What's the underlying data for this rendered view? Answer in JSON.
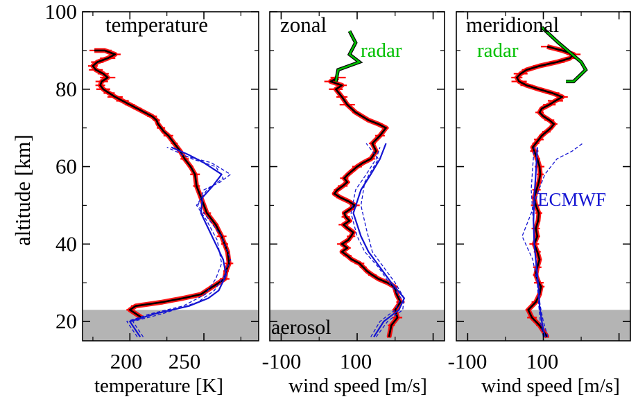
{
  "chart_data": {
    "type": "line",
    "ylabel": "altitude [km]",
    "ylim": [
      15,
      100
    ],
    "yticks": [
      "20",
      "40",
      "60",
      "80",
      "100"
    ],
    "shaded_band": {
      "label": "aerosol",
      "y_from": 15,
      "y_to": 23
    },
    "colors": {
      "lidar": "#000000",
      "error": "#ff0000",
      "radar": "#00c000",
      "ecmwf": "#1414d2",
      "band": "#b4b4b4"
    },
    "panels": [
      {
        "title": "temperature",
        "xlabel": "temperature [K]",
        "xlim": [
          168,
          287
        ],
        "xticks": [
          "200",
          "250"
        ],
        "series": [
          {
            "name": "",
            "style": "lidar",
            "x": [
              208,
              200,
              204,
              222,
              236,
              248,
              256,
              264,
              265,
              267,
              266,
              264,
              262,
              258,
              252,
              248,
              245,
              244,
              241,
              237,
              234,
              230,
              226,
              223,
              221,
              219,
              218,
              215,
              210,
              205,
              200,
              195,
              190,
              186,
              182,
              180,
              181,
              185,
              182,
              177,
              175,
              178,
              185,
              190,
              183,
              176
            ],
            "y": [
              21,
              23,
              24,
              25,
              26,
              27,
              29,
              31,
              33,
              35,
              38,
              40,
              42,
              45,
              48,
              52,
              55,
              58,
              60,
              62,
              64,
              66,
              68,
              69,
              70,
              71,
              72,
              73,
              74,
              75,
              76,
              77,
              78,
              79,
              80,
              81,
              82,
              83,
              84,
              85,
              86,
              87,
              88,
              89,
              90,
              90
            ]
          },
          {
            "name": "",
            "style": "ecmwf",
            "x": [
              207,
              200,
              217,
              240,
              253,
              260,
              265,
              263,
              258,
              253,
              248,
              249,
              256,
              262,
              250,
              240,
              228
            ],
            "y": [
              16,
              20,
              22,
              24,
              26,
              28,
              32,
              36,
              40,
              44,
              48,
              52,
              55,
              58,
              61,
              63,
              65
            ]
          },
          {
            "name": "",
            "style": "ecmwf-dashed",
            "x": [
              209,
              202,
              222,
              246,
              257,
              264,
              268,
              262,
              254,
              246,
              250,
              261,
              268,
              255,
              235
            ],
            "y": [
              16,
              20,
              22,
              25,
              28,
              32,
              36,
              42,
              46,
              50,
              54,
              56,
              58,
              61,
              63
            ]
          },
          {
            "name": "",
            "style": "ecmwf-dashed",
            "x": [
              205,
              198,
              214,
              236,
              251,
              258,
              262,
              259,
              252,
              245,
              252,
              263,
              258,
              242,
              225
            ],
            "y": [
              16,
              20,
              22,
              24,
              27,
              31,
              35,
              41,
              46,
              50,
              54,
              57,
              60,
              62,
              65
            ]
          }
        ]
      },
      {
        "title": "zonal",
        "xlabel": "wind speed [m/s]",
        "xlim": [
          -115,
          115
        ],
        "xticks": [
          "-100",
          "100"
        ],
        "series": [
          {
            "name": "",
            "style": "lidar",
            "x": [
              42,
              45,
              53,
              50,
              57,
              52,
              49,
              40,
              28,
              20,
              13,
              8,
              3,
              -7,
              -13,
              -20,
              -13,
              -20,
              -12,
              -8,
              -5,
              -12,
              -18,
              -10,
              -15,
              -17,
              -9,
              -3,
              -11,
              -22,
              -30,
              -26,
              -19,
              -13,
              -17,
              -12,
              -6,
              0,
              8,
              18,
              25,
              20,
              30,
              38,
              28,
              15,
              -2,
              -13,
              -20,
              -28,
              -20,
              -35,
              -25
            ],
            "y": [
              16,
              19,
              21,
              23,
              25,
              27,
              29,
              30,
              31,
              32,
              33,
              34,
              35,
              36,
              37,
              38,
              39,
              40,
              41,
              42,
              43,
              44,
              45,
              46,
              47,
              48,
              49,
              50,
              51,
              52,
              53,
              54,
              55,
              56,
              57,
              58,
              59,
              60,
              61,
              62,
              64,
              66,
              68,
              70,
              71,
              72,
              74,
              76,
              78,
              80,
              81,
              82,
              83
            ]
          },
          {
            "name": "",
            "style": "ecmwf",
            "x": [
              22,
              35,
              55,
              62,
              45,
              30,
              15,
              5,
              -5,
              5,
              18,
              30,
              38
            ],
            "y": [
              16,
              20,
              23,
              26,
              30,
              34,
              38,
              42,
              48,
              54,
              58,
              62,
              66
            ]
          },
          {
            "name": "",
            "style": "ecmwf-dashed",
            "x": [
              25,
              40,
              60,
              62,
              50,
              35,
              20,
              12,
              5,
              10,
              22,
              28,
              20,
              12
            ],
            "y": [
              16,
              20,
              23,
              26,
              30,
              34,
              38,
              44,
              50,
              56,
              60,
              62,
              64,
              66
            ]
          },
          {
            "name": "",
            "style": "ecmwf-dashed",
            "x": [
              18,
              30,
              50,
              58,
              42,
              28,
              10,
              0,
              -8,
              -2,
              12,
              25,
              30
            ],
            "y": [
              16,
              20,
              23,
              26,
              30,
              34,
              38,
              42,
              48,
              54,
              58,
              62,
              65
            ]
          },
          {
            "name": "radar",
            "style": "radar",
            "x": [
              -28,
              -25,
              3,
              -10,
              -2,
              -10
            ],
            "y": [
              82,
              85,
              87,
              89,
              92,
              95
            ]
          }
        ]
      },
      {
        "title": "meridional",
        "xlabel": "wind speed [m/s]",
        "xlim": [
          -115,
          115
        ],
        "xticks": [
          "-100",
          "100"
        ],
        "series": [
          {
            "name": "",
            "style": "lidar",
            "x": [
              5,
              -5,
              -15,
              -20,
              -10,
              -5,
              -3,
              -6,
              -10,
              -8,
              -5,
              -8,
              -12,
              -8,
              -10,
              -7,
              -6,
              -10,
              -12,
              -9,
              -6,
              -4,
              -5,
              -8,
              -12,
              -14,
              -10,
              -6,
              -2,
              4,
              10,
              14,
              8,
              0,
              -5,
              -2,
              8,
              16,
              25,
              12,
              -6,
              -22,
              -32,
              -35,
              -30,
              -22,
              -5,
              18,
              35,
              40,
              25,
              5
            ],
            "y": [
              16,
              19,
              21,
              23,
              25,
              27,
              29,
              30,
              32,
              34,
              36,
              38,
              40,
              42,
              44,
              46,
              48,
              50,
              52,
              54,
              56,
              58,
              60,
              62,
              64,
              65,
              66,
              67,
              68,
              69,
              70,
              71,
              72,
              73,
              74,
              75,
              76,
              77,
              78,
              79,
              80,
              81,
              82,
              83,
              84,
              85,
              86,
              87,
              88,
              89,
              90,
              91
            ]
          },
          {
            "name": "",
            "style": "ecmwf",
            "x": [
              2,
              -2,
              -5,
              -6,
              -8,
              -10,
              -12,
              -13,
              -12,
              -10,
              -8
            ],
            "y": [
              16,
              20,
              24,
              28,
              32,
              36,
              40,
              46,
              52,
              58,
              65
            ]
          },
          {
            "name": "",
            "style": "ecmwf-dashed",
            "x": [
              6,
              0,
              -4,
              -8,
              -14,
              -28,
              -20,
              -12,
              -6,
              2,
              18,
              38,
              52
            ],
            "y": [
              16,
              20,
              24,
              30,
              36,
              42,
              46,
              50,
              54,
              58,
              62,
              64,
              66
            ]
          },
          {
            "name": "",
            "style": "ecmwf-dashed",
            "x": [
              0,
              -4,
              -6,
              -8,
              -10,
              -12,
              -14,
              -16,
              -14,
              -12
            ],
            "y": [
              16,
              20,
              24,
              30,
              36,
              42,
              48,
              54,
              60,
              65
            ]
          },
          {
            "name": "radar",
            "style": "radar",
            "x": [
              30,
              40,
              56,
              50,
              20,
              -2
            ],
            "y": [
              82,
              82,
              85,
              87,
              92,
              96
            ]
          }
        ]
      }
    ],
    "annotations": [
      {
        "text": "radar",
        "panel": 1,
        "x": 10,
        "y": 90
      },
      {
        "text": "radar",
        "panel": 2,
        "x": -40,
        "y": 90
      },
      {
        "text": "ECMWF",
        "panel": 2,
        "x": 0,
        "y": 51
      },
      {
        "text": "aerosol",
        "panel": 0,
        "x": 0,
        "y": 17
      }
    ]
  }
}
